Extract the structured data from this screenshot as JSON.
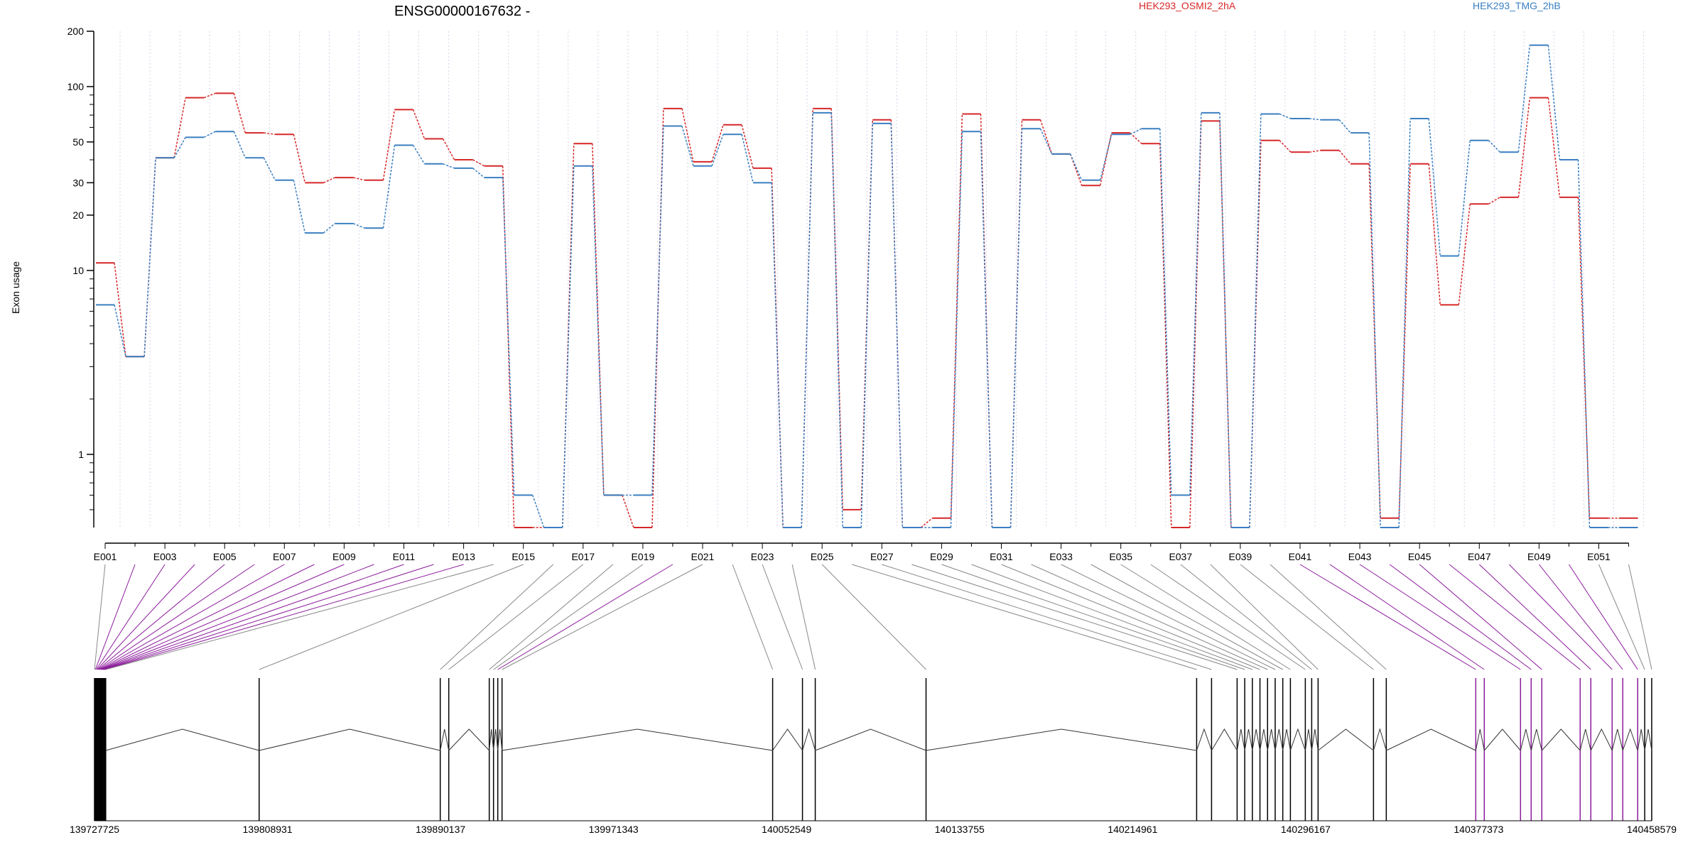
{
  "chart_data": {
    "type": "line",
    "title": "ENSG00000167632 -",
    "ylabel": "Exon usage",
    "xlabel": "",
    "y_scale": "log",
    "ylim": [
      0.4,
      200
    ],
    "y_ticks": [
      {
        "value": 200,
        "label": "200"
      },
      {
        "value": 100,
        "label": "100"
      },
      {
        "value": 50,
        "label": "50"
      },
      {
        "value": 30,
        "label": "30"
      },
      {
        "value": 20,
        "label": "20"
      },
      {
        "value": 10,
        "label": "10"
      },
      {
        "value": 1,
        "label": "1"
      }
    ],
    "legend_placement": "top",
    "colors": {
      "series_a": "#d62728",
      "series_b": "#3a7fc1",
      "highlight": "#8b1a9b",
      "guide": "#888888",
      "gridline": "#dcd0e8"
    },
    "categories": [
      "E001",
      "E002",
      "E003",
      "E004",
      "E005",
      "E006",
      "E007",
      "E008",
      "E009",
      "E010",
      "E011",
      "E012",
      "E013",
      "E014",
      "E015",
      "E016",
      "E017",
      "E018",
      "E019",
      "E020",
      "E021",
      "E022",
      "E023",
      "E024",
      "E025",
      "E026",
      "E027",
      "E028",
      "E029",
      "E030",
      "E031",
      "E032",
      "E033",
      "E034",
      "E035",
      "E036",
      "E037",
      "E038",
      "E039",
      "E040",
      "E041",
      "E042",
      "E043",
      "E044",
      "E045",
      "E046",
      "E047",
      "E048",
      "E049",
      "E050",
      "E051",
      "E052"
    ],
    "tick_labels": [
      "E001",
      "E003",
      "E005",
      "E007",
      "E009",
      "E011",
      "E013",
      "E015",
      "E017",
      "E019",
      "E021",
      "E023",
      "E025",
      "E027",
      "E029",
      "E031",
      "E033",
      "E035",
      "E037",
      "E039",
      "E041",
      "E043",
      "E045",
      "E047",
      "E049",
      "E051"
    ],
    "series": [
      {
        "name": "HEK293_OSMI2_2hA",
        "values": [
          11,
          3.4,
          41,
          87,
          92,
          56,
          55,
          30,
          32,
          31,
          75,
          52,
          40,
          37,
          0.4,
          0.4,
          49,
          0.6,
          0.4,
          76,
          39,
          62,
          36,
          0.4,
          76,
          0.5,
          66,
          0.4,
          0.45,
          71,
          0.4,
          66,
          43,
          29,
          56,
          49,
          0.4,
          65,
          0.4,
          51,
          44,
          45,
          38,
          0.45,
          38,
          6.5,
          23,
          25,
          87,
          25,
          0.45,
          0.45
        ]
      },
      {
        "name": "HEK293_TMG_2hB",
        "values": [
          6.5,
          3.4,
          41,
          53,
          57,
          41,
          31,
          16,
          18,
          17,
          48,
          38,
          36,
          32,
          0.6,
          0.4,
          37,
          0.6,
          0.6,
          61,
          37,
          55,
          30,
          0.4,
          72,
          0.4,
          63,
          0.4,
          0.4,
          57,
          0.4,
          59,
          43,
          31,
          55,
          59,
          0.6,
          72,
          0.4,
          71,
          67,
          66,
          56,
          0.4,
          67,
          12,
          51,
          44,
          168,
          40,
          0.4,
          0.4
        ]
      }
    ],
    "genomic_axis": {
      "ticks": [
        "139727725",
        "139808931",
        "139890137",
        "139971343",
        "140052549",
        "140133755",
        "140214961",
        "140296167",
        "140377373",
        "140458579"
      ]
    },
    "highlighted_exons": [
      "E002",
      "E003",
      "E004",
      "E005",
      "E006",
      "E007",
      "E008",
      "E009",
      "E010",
      "E011",
      "E012",
      "E013",
      "E020",
      "E041",
      "E042",
      "E043",
      "E044",
      "E045",
      "E046",
      "E047",
      "E048",
      "E049",
      "E050"
    ]
  }
}
